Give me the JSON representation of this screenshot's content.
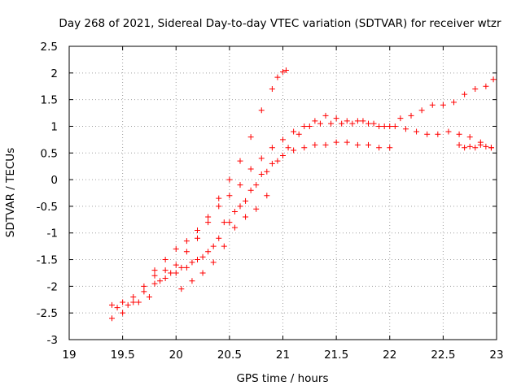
{
  "chart_data": {
    "type": "scatter",
    "title": "Day 268 of 2021, Sidereal Day-to-day VTEC variation (SDTVAR) for receiver wtzr",
    "xlabel": "GPS time / hours",
    "ylabel": "SDTVAR / TECUs",
    "xlim": [
      19,
      23
    ],
    "ylim": [
      -3,
      2.5
    ],
    "xticks": [
      "19",
      "19.5",
      "20",
      "20.5",
      "21",
      "21.5",
      "22",
      "22.5",
      "23"
    ],
    "yticks": [
      "-3",
      "-2.5",
      "-2",
      "-1.5",
      "-1",
      "-0.5",
      "0",
      "0.5",
      "1",
      "1.5",
      "2",
      "2.5"
    ],
    "grid": true,
    "marker": "+",
    "color": "#ff0000",
    "series": [
      {
        "name": "track-steep",
        "x": [
          19.4,
          19.5,
          19.6,
          19.7,
          19.8,
          19.9,
          20.0,
          20.1,
          20.2,
          20.3,
          20.4,
          20.5,
          20.6,
          20.7,
          20.8,
          20.9,
          20.95,
          21.0,
          21.03
        ],
        "y": [
          -2.35,
          -2.3,
          -2.2,
          -2.0,
          -1.7,
          -1.5,
          -1.3,
          -1.15,
          -0.95,
          -0.7,
          -0.35,
          0.0,
          0.35,
          0.8,
          1.3,
          1.7,
          1.92,
          2.02,
          2.05
        ]
      },
      {
        "name": "track-main",
        "x": [
          19.4,
          19.5,
          19.6,
          19.7,
          19.8,
          19.9,
          20.0,
          20.1,
          20.2,
          20.3,
          20.4,
          20.5,
          20.6,
          20.7,
          20.8,
          20.9,
          21.0,
          21.1,
          21.2,
          21.3,
          21.4,
          21.5,
          21.6,
          21.7,
          21.8,
          21.9,
          22.0,
          22.1,
          22.2,
          22.3,
          22.4,
          22.5,
          22.6,
          22.7,
          22.8,
          22.9,
          22.97
        ],
        "y": [
          -2.6,
          -2.5,
          -2.3,
          -2.1,
          -1.8,
          -1.7,
          -1.6,
          -1.35,
          -1.1,
          -0.8,
          -0.5,
          -0.3,
          -0.1,
          0.2,
          0.4,
          0.6,
          0.75,
          0.9,
          1.0,
          1.1,
          1.2,
          1.15,
          1.1,
          1.1,
          1.05,
          1.0,
          1.0,
          1.15,
          1.2,
          1.3,
          1.4,
          1.4,
          1.45,
          1.6,
          1.7,
          1.75,
          1.88
        ]
      },
      {
        "name": "track-lower",
        "x": [
          19.45,
          19.55,
          19.65,
          19.75,
          19.85,
          19.95,
          20.05,
          20.15,
          20.25,
          20.35,
          20.45,
          20.55,
          20.65,
          20.75,
          20.85,
          20.95,
          21.05,
          21.15,
          21.25,
          21.35,
          21.45,
          21.55,
          21.65,
          21.75,
          21.85,
          21.95,
          22.05,
          22.15,
          22.25,
          22.35,
          22.45,
          22.55,
          22.65,
          22.75,
          22.85,
          22.95
        ],
        "y": [
          -2.4,
          -2.35,
          -2.3,
          -2.2,
          -1.9,
          -1.75,
          -1.65,
          -1.55,
          -1.45,
          -1.25,
          -0.8,
          -0.6,
          -0.4,
          -0.1,
          0.15,
          0.35,
          0.6,
          0.85,
          1.0,
          1.05,
          1.05,
          1.05,
          1.05,
          1.1,
          1.05,
          1.0,
          1.0,
          0.95,
          0.9,
          0.85,
          0.85,
          0.9,
          0.85,
          0.8,
          0.7,
          0.6
        ]
      },
      {
        "name": "track-flat",
        "x": [
          19.8,
          19.9,
          20.0,
          20.1,
          20.2,
          20.3,
          20.4,
          20.5,
          20.6,
          20.7,
          20.8,
          20.9,
          21.0,
          21.1,
          21.2,
          21.3,
          21.4,
          21.5,
          21.6,
          21.7,
          21.8,
          21.9,
          22.0
        ],
        "y": [
          -1.95,
          -1.85,
          -1.75,
          -1.65,
          -1.5,
          -1.35,
          -1.1,
          -0.8,
          -0.5,
          -0.2,
          0.1,
          0.3,
          0.45,
          0.55,
          0.6,
          0.65,
          0.65,
          0.7,
          0.7,
          0.65,
          0.65,
          0.6,
          0.6
        ]
      },
      {
        "name": "track-late",
        "x": [
          20.05,
          20.15,
          20.25,
          20.35,
          20.45,
          20.55,
          20.65,
          20.75,
          20.85
        ],
        "y": [
          -2.05,
          -1.9,
          -1.75,
          -1.55,
          -1.25,
          -0.9,
          -0.7,
          -0.55,
          -0.3
        ]
      },
      {
        "name": "track-tail",
        "x": [
          22.65,
          22.7,
          22.75,
          22.8,
          22.85,
          22.9,
          22.95
        ],
        "y": [
          0.65,
          0.6,
          0.62,
          0.6,
          0.65,
          0.62,
          0.6
        ]
      }
    ]
  }
}
